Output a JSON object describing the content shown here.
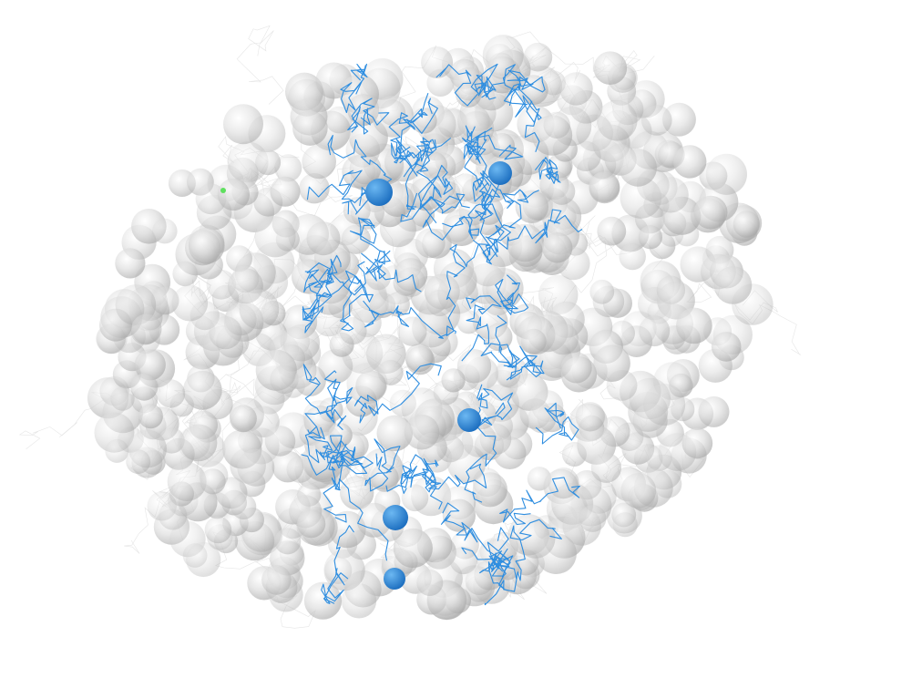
{
  "scene": {
    "background": "#ffffff",
    "description_free": true,
    "sphere_cloud": {
      "color_light": "#ffffff",
      "color_mid": "#d9d9d9",
      "color_dark": "#a8a8a8",
      "opacity": 0.55
    },
    "wire_mesh": {
      "color": "#e6e6e6"
    },
    "fiber_network": {
      "color": "#2f8ee0"
    },
    "markers": {
      "color_light": "#6cb8f2",
      "color_dark": "#1d6fc0",
      "count": 5
    },
    "highlight_point": {
      "color": "#5ee05e"
    }
  }
}
